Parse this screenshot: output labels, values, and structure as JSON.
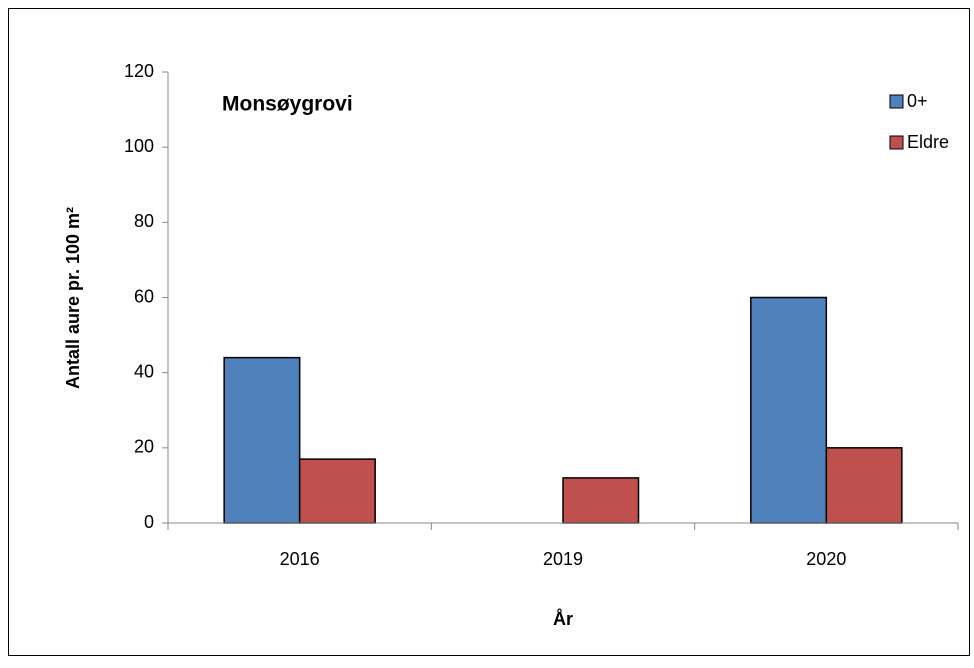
{
  "chart_data": {
    "type": "bar",
    "title": "Monsøygrovi",
    "x_label": "År",
    "y_label": "Antall aure pr. 100 m²",
    "categories": [
      "2016",
      "2019",
      "2020"
    ],
    "series": [
      {
        "name": "0+",
        "color": "#4f81bd",
        "values": [
          44,
          0,
          60
        ]
      },
      {
        "name": "Eldre",
        "color": "#c0504d",
        "values": [
          17,
          12,
          20
        ]
      }
    ],
    "ylim": [
      0,
      120
    ],
    "yticks": [
      0,
      20,
      40,
      60,
      80,
      100,
      120
    ],
    "grid": false,
    "legend": "upper right"
  }
}
